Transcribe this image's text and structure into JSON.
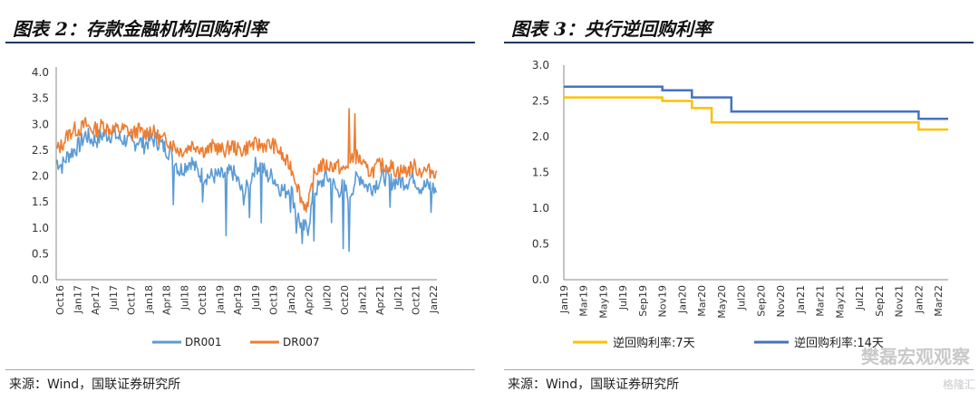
{
  "left": {
    "title": "图表 2：存款金融机构回购利率",
    "source": "来源：Wind，国联证券研究所",
    "chart_data": {
      "type": "line",
      "x_tick_labels": [
        "Oct16",
        "Jan17",
        "Apr17",
        "Jul17",
        "Oct17",
        "Jan18",
        "Apr18",
        "Jul18",
        "Oct18",
        "Jan19",
        "Apr19",
        "Jul19",
        "Oct19",
        "Jan20",
        "Apr20",
        "Jul20",
        "Oct20",
        "Jan21",
        "Apr21",
        "Jul21",
        "Oct21",
        "Jan22"
      ],
      "y_tick_labels": [
        "4.0",
        "3.5",
        "3.0",
        "2.5",
        "2.0",
        "1.5",
        "1.0",
        "0.5",
        "0.0"
      ],
      "ylim": [
        0,
        4
      ],
      "legend_position": "bottom",
      "series": [
        {
          "name": "DR001",
          "color": "#5b9bd5",
          "months": [
            "Oct16",
            "Nov16",
            "Dec16",
            "Jan17",
            "Feb17",
            "Mar17",
            "Apr17",
            "May17",
            "Jun17",
            "Jul17",
            "Aug17",
            "Sep17",
            "Oct17",
            "Nov17",
            "Dec17",
            "Jan18",
            "Feb18",
            "Mar18",
            "Apr18",
            "May18",
            "Jun18",
            "Jul18",
            "Aug18",
            "Sep18",
            "Oct18",
            "Nov18",
            "Dec18",
            "Jan19",
            "Feb19",
            "Mar19",
            "Apr19",
            "May19",
            "Jun19",
            "Jul19",
            "Aug19",
            "Sep19",
            "Oct19",
            "Nov19",
            "Dec19",
            "Jan20",
            "Feb20",
            "Mar20",
            "Apr20",
            "May20",
            "Jun20",
            "Jul20",
            "Aug20",
            "Sep20",
            "Oct20",
            "Nov20",
            "Dec20",
            "Jan21",
            "Feb21",
            "Mar21",
            "Apr21",
            "May21",
            "Jun21",
            "Jul21",
            "Aug21",
            "Sep21",
            "Oct21",
            "Nov21",
            "Dec21",
            "Jan22",
            "Feb22",
            "Mar22"
          ],
          "values": [
            2.3,
            2.2,
            2.4,
            2.5,
            2.6,
            2.8,
            2.7,
            2.7,
            2.8,
            2.8,
            2.8,
            2.7,
            2.7,
            2.6,
            2.7,
            2.6,
            2.7,
            2.7,
            2.6,
            2.5,
            2.4,
            2.1,
            2.2,
            2.3,
            2.1,
            2.0,
            2.0,
            2.0,
            2.0,
            2.0,
            2.1,
            1.9,
            1.6,
            1.9,
            2.2,
            2.2,
            2.0,
            2.0,
            1.8,
            1.7,
            1.8,
            1.3,
            1.0,
            1.0,
            1.7,
            1.8,
            2.0,
            1.9,
            1.7,
            1.8,
            1.6,
            1.9,
            2.0,
            1.8,
            1.8,
            1.9,
            2.0,
            1.9,
            1.9,
            1.9,
            1.9,
            2.0,
            1.8,
            1.8,
            1.8,
            1.7
          ],
          "spikes_low": [
            [
              20,
              1.45
            ],
            [
              25,
              1.5
            ],
            [
              29,
              0.85
            ],
            [
              33,
              1.2
            ],
            [
              35,
              1.1
            ],
            [
              40,
              1.3
            ],
            [
              41,
              0.9
            ],
            [
              42,
              0.7
            ],
            [
              44,
              0.75
            ],
            [
              47,
              1.1
            ],
            [
              49,
              0.6
            ],
            [
              50,
              0.55
            ],
            [
              57,
              1.4
            ],
            [
              64,
              1.3
            ]
          ]
        },
        {
          "name": "DR007",
          "color": "#ed7d31",
          "months": [
            "Oct16",
            "Nov16",
            "Dec16",
            "Jan17",
            "Feb17",
            "Mar17",
            "Apr17",
            "May17",
            "Jun17",
            "Jul17",
            "Aug17",
            "Sep17",
            "Oct17",
            "Nov17",
            "Dec17",
            "Jan18",
            "Feb18",
            "Mar18",
            "Apr18",
            "May18",
            "Jun18",
            "Jul18",
            "Aug18",
            "Sep18",
            "Oct18",
            "Nov18",
            "Dec18",
            "Jan19",
            "Feb19",
            "Mar19",
            "Apr19",
            "May19",
            "Jun19",
            "Jul19",
            "Aug19",
            "Sep19",
            "Oct19",
            "Nov19",
            "Dec19",
            "Jan20",
            "Feb20",
            "Mar20",
            "Apr20",
            "May20",
            "Jun20",
            "Jul20",
            "Aug20",
            "Sep20",
            "Oct20",
            "Nov20",
            "Dec20",
            "Jan21",
            "Feb21",
            "Mar21",
            "Apr21",
            "May21",
            "Jun21",
            "Jul21",
            "Aug21",
            "Sep21",
            "Oct21",
            "Nov21",
            "Dec21",
            "Jan22",
            "Feb22",
            "Mar22"
          ],
          "values": [
            2.5,
            2.6,
            2.8,
            2.9,
            2.9,
            3.0,
            2.9,
            2.9,
            3.0,
            2.9,
            2.9,
            2.9,
            2.9,
            2.8,
            2.9,
            2.8,
            2.9,
            2.8,
            2.7,
            2.7,
            2.6,
            2.5,
            2.5,
            2.6,
            2.6,
            2.5,
            2.5,
            2.6,
            2.5,
            2.5,
            2.6,
            2.5,
            2.5,
            2.6,
            2.6,
            2.6,
            2.6,
            2.6,
            2.5,
            2.3,
            2.2,
            1.9,
            1.5,
            1.4,
            2.0,
            2.2,
            2.2,
            2.2,
            2.2,
            2.1,
            2.2,
            2.4,
            2.3,
            2.1,
            2.1,
            2.2,
            2.2,
            2.2,
            2.1,
            2.1,
            2.1,
            2.2,
            2.1,
            2.1,
            2.1,
            2.1
          ],
          "spikes_high": [
            [
              50,
              3.3
            ],
            [
              51,
              3.2
            ]
          ]
        }
      ]
    }
  },
  "right": {
    "title": "图表 3：央行逆回购利率",
    "source": "来源：Wind，国联证券研究所",
    "chart_data": {
      "type": "line",
      "x_tick_labels": [
        "Jan19",
        "Mar19",
        "May19",
        "Jul19",
        "Sep19",
        "Nov19",
        "Jan20",
        "Mar20",
        "May20",
        "Jul20",
        "Sep20",
        "Nov20",
        "Jan21",
        "Mar21",
        "May21",
        "Jul21",
        "Sep21",
        "Nov21",
        "Jan22",
        "Mar22"
      ],
      "y_tick_labels": [
        "3.0",
        "2.5",
        "2.0",
        "1.5",
        "1.0",
        "0.5",
        "0.0"
      ],
      "ylim": [
        0,
        3
      ],
      "legend_position": "bottom",
      "series": [
        {
          "name": "逆回购利率:7天",
          "color": "#ffc000",
          "steps": [
            [
              "2019-01",
              2.55
            ],
            [
              "2019-11",
              2.5
            ],
            [
              "2020-02",
              2.4
            ],
            [
              "2020-04",
              2.2
            ],
            [
              "2022-01",
              2.1
            ],
            [
              "2022-04",
              2.1
            ]
          ]
        },
        {
          "name": "逆回购利率:14天",
          "color": "#4472c4",
          "steps": [
            [
              "2019-01",
              2.7
            ],
            [
              "2019-11",
              2.65
            ],
            [
              "2020-02",
              2.55
            ],
            [
              "2020-06",
              2.35
            ],
            [
              "2022-01",
              2.25
            ],
            [
              "2022-04",
              2.25
            ]
          ]
        }
      ]
    }
  },
  "watermark": "樊磊宏观观察",
  "watermark2": "格隆汇"
}
